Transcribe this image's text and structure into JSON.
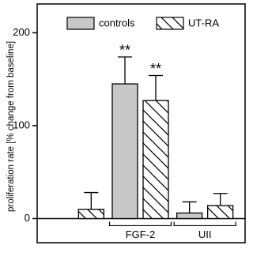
{
  "chart_data": {
    "type": "bar",
    "y_label": "proliferation rate [% change from baseline]",
    "categories": [
      null,
      "FGF-2",
      "UII"
    ],
    "series": [
      {
        "name": "controls",
        "color": "#c8c8c8",
        "hatch": false,
        "values": [
          null,
          145,
          6
        ],
        "errors": [
          null,
          29,
          12
        ],
        "significance": [
          null,
          "**",
          null
        ]
      },
      {
        "name": "UT-RA",
        "color": "#ffffff",
        "hatch": true,
        "values": [
          10,
          127,
          14
        ],
        "errors": [
          18,
          27,
          13
        ],
        "significance": [
          null,
          "**",
          null
        ]
      }
    ],
    "ylim": [
      -26,
      231
    ],
    "yticks": [
      0,
      100,
      200
    ]
  }
}
